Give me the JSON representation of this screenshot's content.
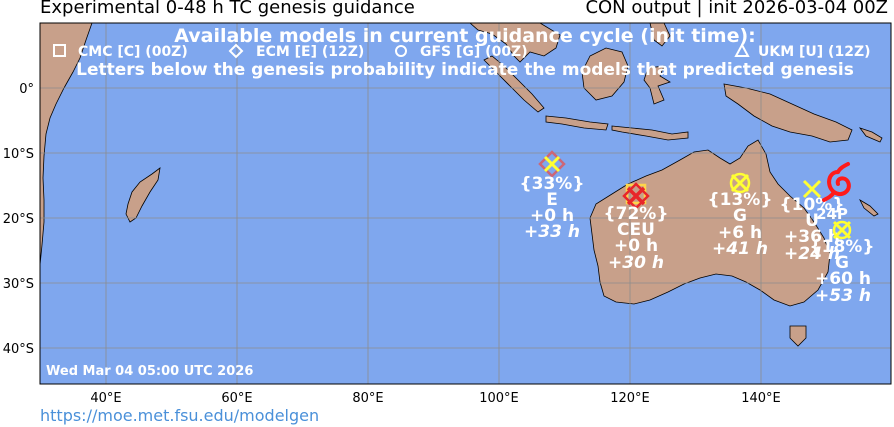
{
  "header": {
    "title_left": "Experimental 0-48 h TC genesis guidance",
    "title_right": "CON output | init 2026-03-04 00Z"
  },
  "legend": {
    "heading": "Available models in current guidance cycle (init time):",
    "models": [
      {
        "symbol": "square",
        "label": "CMC [C] (00Z)"
      },
      {
        "symbol": "diamond",
        "label": "ECM [E] (12Z)"
      },
      {
        "symbol": "circle",
        "label": "GFS [G] (00Z)"
      },
      {
        "symbol": "triangle",
        "label": "UKM [U] (12Z)"
      }
    ],
    "note": "Letters below the genesis probability indicate the models that predicted genesis"
  },
  "map": {
    "valid_time": "Wed Mar 04 05:00 UTC 2026",
    "lon_ticks": [
      "40°E",
      "60°E",
      "80°E",
      "100°E",
      "120°E",
      "140°E"
    ],
    "lat_ticks": [
      "0°",
      "10°S",
      "20°S",
      "30°S",
      "40°S"
    ],
    "colors": {
      "ocean": "#7fa7ee",
      "land": "#c8a08a",
      "grid": "#8c8c8c",
      "marker": "#ffff33",
      "high_prob": "#e8262a",
      "mid_prob": "#cc6677"
    }
  },
  "genesis_points": [
    {
      "prob": "{33%}",
      "models": "E",
      "t1": "+0 h",
      "t2": "+33 h"
    },
    {
      "prob": "{72%}",
      "models": "CEU",
      "t1": "+0 h",
      "t2": "+30 h"
    },
    {
      "prob": "{13%}",
      "models": "G",
      "t1": "+6 h",
      "t2": "+41 h"
    },
    {
      "prob": "{10%}",
      "models": "U",
      "t1": "+36 h",
      "t2": "+24 h"
    },
    {
      "prob": "{18%}",
      "models": "G",
      "t1": "+60 h",
      "t2": "+53 h"
    }
  ],
  "storm": {
    "label": "24P"
  },
  "footer": {
    "url": "https://moe.met.fsu.edu/modelgen"
  }
}
